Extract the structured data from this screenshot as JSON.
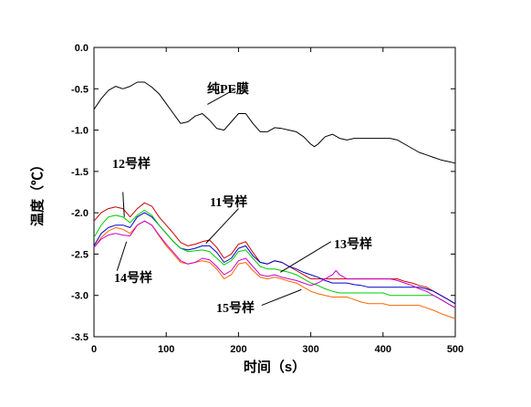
{
  "chart_data": {
    "type": "line",
    "title": "",
    "xlabel": "时间（s）",
    "ylabel": "温度（℃）",
    "xlim": [
      0,
      500
    ],
    "ylim": [
      -3.5,
      0.0
    ],
    "xticks": [
      0,
      100,
      200,
      300,
      400,
      500
    ],
    "yticks": [
      0.0,
      -0.5,
      -1.0,
      -1.5,
      -2.0,
      -2.5,
      -3.0,
      -3.5
    ],
    "ytick_labels": [
      "0.0",
      "-0.5",
      "-1.0",
      "-1.5",
      "-2.0",
      "-2.5",
      "-3.0",
      "-3.5"
    ],
    "grid": false,
    "series": [
      {
        "name": "纯PE膜",
        "color": "#000000",
        "x": [
          0,
          10,
          20,
          30,
          40,
          50,
          60,
          70,
          80,
          90,
          100,
          110,
          120,
          130,
          140,
          150,
          160,
          170,
          180,
          190,
          200,
          210,
          220,
          230,
          240,
          250,
          260,
          270,
          280,
          290,
          300,
          305,
          310,
          320,
          330,
          340,
          350,
          360,
          370,
          380,
          390,
          400,
          410,
          420,
          430,
          440,
          450,
          460,
          470,
          480,
          490,
          500
        ],
        "y": [
          -0.75,
          -0.62,
          -0.52,
          -0.47,
          -0.5,
          -0.47,
          -0.42,
          -0.42,
          -0.48,
          -0.56,
          -0.68,
          -0.8,
          -0.92,
          -0.9,
          -0.83,
          -0.8,
          -0.88,
          -0.98,
          -1.0,
          -0.9,
          -0.8,
          -0.8,
          -0.92,
          -1.02,
          -1.02,
          -0.97,
          -0.98,
          -1.0,
          -1.02,
          -1.08,
          -1.17,
          -1.2,
          -1.17,
          -1.08,
          -1.05,
          -1.1,
          -1.12,
          -1.1,
          -1.1,
          -1.1,
          -1.1,
          -1.1,
          -1.1,
          -1.12,
          -1.17,
          -1.22,
          -1.27,
          -1.3,
          -1.33,
          -1.36,
          -1.38,
          -1.4
        ]
      },
      {
        "name": "12号样",
        "color": "#cc0000",
        "x": [
          0,
          10,
          20,
          30,
          40,
          50,
          60,
          70,
          80,
          90,
          100,
          110,
          120,
          130,
          140,
          150,
          160,
          170,
          180,
          190,
          200,
          210,
          220,
          230,
          240,
          250,
          260,
          270,
          280,
          290,
          300,
          310,
          320,
          330,
          340,
          350,
          360,
          370,
          380,
          390,
          400,
          410,
          420,
          430,
          440,
          450,
          460,
          470,
          480,
          490,
          500
        ],
        "y": [
          -2.1,
          -2.0,
          -1.95,
          -1.93,
          -1.95,
          -2.05,
          -1.95,
          -1.88,
          -1.92,
          -2.05,
          -2.15,
          -2.25,
          -2.36,
          -2.4,
          -2.38,
          -2.35,
          -2.33,
          -2.42,
          -2.55,
          -2.5,
          -2.38,
          -2.35,
          -2.48,
          -2.6,
          -2.62,
          -2.58,
          -2.6,
          -2.65,
          -2.7,
          -2.75,
          -2.8,
          -2.8,
          -2.8,
          -2.8,
          -2.8,
          -2.8,
          -2.8,
          -2.8,
          -2.8,
          -2.8,
          -2.8,
          -2.8,
          -2.8,
          -2.83,
          -2.85,
          -2.88,
          -2.9,
          -2.95,
          -3.0,
          -3.05,
          -3.1
        ]
      },
      {
        "name": "13号样",
        "color": "#0000cc",
        "x": [
          0,
          10,
          20,
          30,
          40,
          50,
          60,
          70,
          80,
          90,
          100,
          110,
          120,
          130,
          140,
          150,
          160,
          170,
          180,
          190,
          200,
          210,
          220,
          230,
          240,
          250,
          260,
          270,
          280,
          290,
          300,
          310,
          320,
          330,
          340,
          350,
          360,
          370,
          380,
          390,
          400,
          410,
          420,
          430,
          440,
          450,
          460,
          470,
          480,
          490,
          500
        ],
        "y": [
          -2.4,
          -2.25,
          -2.18,
          -2.15,
          -2.15,
          -2.18,
          -2.05,
          -2.0,
          -2.05,
          -2.15,
          -2.25,
          -2.35,
          -2.43,
          -2.45,
          -2.43,
          -2.4,
          -2.4,
          -2.48,
          -2.6,
          -2.55,
          -2.43,
          -2.4,
          -2.52,
          -2.6,
          -2.62,
          -2.58,
          -2.6,
          -2.65,
          -2.68,
          -2.72,
          -2.75,
          -2.78,
          -2.82,
          -2.85,
          -2.85,
          -2.85,
          -2.87,
          -2.88,
          -2.9,
          -2.9,
          -2.9,
          -2.9,
          -2.9,
          -2.9,
          -2.9,
          -2.9,
          -2.92,
          -2.95,
          -3.0,
          -3.05,
          -3.1
        ]
      },
      {
        "name": "14号样",
        "color": "#00cc00",
        "x": [
          0,
          10,
          20,
          30,
          40,
          50,
          60,
          70,
          80,
          90,
          100,
          110,
          120,
          130,
          140,
          150,
          160,
          170,
          180,
          190,
          200,
          210,
          220,
          230,
          240,
          250,
          260,
          270,
          280,
          290,
          300,
          310,
          320,
          330,
          340,
          350,
          360,
          370,
          380,
          390,
          400,
          410,
          420,
          430,
          440,
          450,
          460,
          470,
          480,
          490,
          500
        ],
        "y": [
          -2.3,
          -2.15,
          -2.05,
          -2.03,
          -2.05,
          -2.12,
          -2.03,
          -1.97,
          -2.03,
          -2.15,
          -2.25,
          -2.35,
          -2.43,
          -2.47,
          -2.46,
          -2.45,
          -2.47,
          -2.55,
          -2.63,
          -2.58,
          -2.47,
          -2.45,
          -2.55,
          -2.65,
          -2.68,
          -2.68,
          -2.7,
          -2.72,
          -2.75,
          -2.8,
          -2.85,
          -2.88,
          -2.92,
          -2.95,
          -2.97,
          -2.97,
          -2.97,
          -2.97,
          -2.97,
          -2.97,
          -2.97,
          -3.0,
          -3.0,
          -3.0,
          -3.0,
          -3.0,
          -3.0,
          -3.0,
          -3.05,
          -3.1,
          -3.15
        ]
      },
      {
        "name": "15号样",
        "color": "#ff6600",
        "x": [
          0,
          10,
          20,
          30,
          40,
          50,
          60,
          70,
          80,
          90,
          100,
          110,
          120,
          130,
          140,
          150,
          160,
          170,
          180,
          190,
          200,
          210,
          220,
          230,
          240,
          250,
          260,
          270,
          280,
          290,
          300,
          310,
          320,
          330,
          340,
          350,
          360,
          370,
          380,
          390,
          400,
          410,
          420,
          430,
          440,
          450,
          460,
          470,
          480,
          490,
          500
        ],
        "y": [
          -2.42,
          -2.3,
          -2.22,
          -2.18,
          -2.2,
          -2.25,
          -2.15,
          -2.1,
          -2.15,
          -2.28,
          -2.4,
          -2.5,
          -2.6,
          -2.62,
          -2.6,
          -2.58,
          -2.6,
          -2.68,
          -2.8,
          -2.75,
          -2.62,
          -2.6,
          -2.7,
          -2.78,
          -2.8,
          -2.78,
          -2.8,
          -2.83,
          -2.85,
          -2.9,
          -2.95,
          -2.98,
          -3.0,
          -3.02,
          -3.02,
          -3.02,
          -3.05,
          -3.08,
          -3.1,
          -3.1,
          -3.1,
          -3.12,
          -3.12,
          -3.12,
          -3.12,
          -3.12,
          -3.15,
          -3.18,
          -3.22,
          -3.25,
          -3.28
        ]
      },
      {
        "name": "",
        "color": "#cc00cc",
        "x": [
          0,
          10,
          20,
          30,
          40,
          50,
          60,
          70,
          80,
          90,
          100,
          110,
          120,
          130,
          140,
          150,
          160,
          170,
          180,
          190,
          200,
          210,
          220,
          230,
          240,
          250,
          260,
          270,
          280,
          290,
          300,
          310,
          320,
          330,
          335,
          340,
          350,
          360,
          370,
          380,
          390,
          400,
          410,
          420,
          430,
          440,
          450,
          460,
          470,
          480,
          490,
          500
        ],
        "y": [
          -2.42,
          -2.32,
          -2.27,
          -2.25,
          -2.27,
          -2.28,
          -2.15,
          -2.1,
          -2.15,
          -2.27,
          -2.38,
          -2.48,
          -2.58,
          -2.62,
          -2.6,
          -2.55,
          -2.57,
          -2.65,
          -2.75,
          -2.7,
          -2.58,
          -2.55,
          -2.65,
          -2.75,
          -2.77,
          -2.75,
          -2.78,
          -2.8,
          -2.82,
          -2.85,
          -2.88,
          -2.85,
          -2.8,
          -2.75,
          -2.7,
          -2.75,
          -2.8,
          -2.8,
          -2.8,
          -2.8,
          -2.8,
          -2.8,
          -2.8,
          -2.82,
          -2.85,
          -2.88,
          -2.92,
          -2.95,
          -3.0,
          -3.05,
          -3.1,
          -3.15
        ]
      }
    ],
    "annotations": [
      {
        "text": "纯PE膜",
        "x": 157,
        "y": -0.7
      },
      {
        "text": "12号样",
        "x": 42,
        "y": -2.05
      },
      {
        "text": "11号样",
        "x": 155,
        "y": -2.37
      },
      {
        "text": "13号样",
        "x": 255,
        "y": -2.7
      },
      {
        "text": "14号样",
        "x": 45,
        "y": -2.35
      },
      {
        "text": "15号样",
        "x": 285,
        "y": -2.92
      }
    ]
  }
}
